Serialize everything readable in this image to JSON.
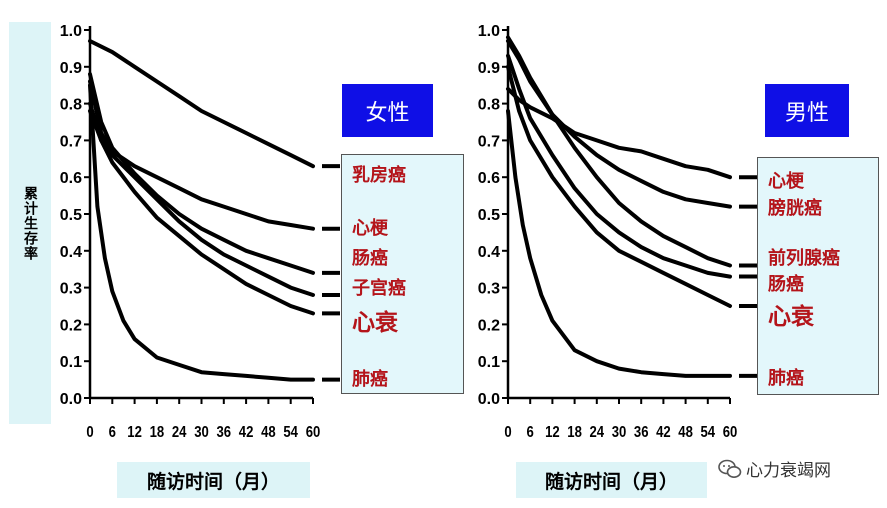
{
  "y_axis_title": "累计生存率",
  "watermark": "心力衰竭网",
  "chart_data": [
    {
      "type": "line",
      "title": "女性",
      "xlabel": "随访时间（月）",
      "ylabel": "累计生存率",
      "xlim": [
        0,
        60
      ],
      "ylim": [
        0,
        1.0
      ],
      "xticks": [
        0,
        6,
        12,
        18,
        24,
        30,
        36,
        42,
        48,
        54,
        60
      ],
      "yticks": [
        0.0,
        0.1,
        0.2,
        0.3,
        0.4,
        0.5,
        0.6,
        0.7,
        0.8,
        0.9,
        1.0
      ],
      "series": [
        {
          "name": "乳房癌",
          "x": [
            0,
            6,
            12,
            18,
            24,
            30,
            36,
            42,
            48,
            54,
            60
          ],
          "values": [
            0.97,
            0.94,
            0.9,
            0.86,
            0.82,
            0.78,
            0.75,
            0.72,
            0.69,
            0.66,
            0.63
          ]
        },
        {
          "name": "心梗",
          "x": [
            0,
            3,
            6,
            12,
            18,
            24,
            30,
            36,
            42,
            48,
            54,
            60
          ],
          "values": [
            0.86,
            0.72,
            0.67,
            0.63,
            0.6,
            0.57,
            0.54,
            0.52,
            0.5,
            0.48,
            0.47,
            0.46
          ]
        },
        {
          "name": "肠癌",
          "x": [
            0,
            3,
            6,
            12,
            18,
            24,
            30,
            36,
            42,
            48,
            54,
            60
          ],
          "values": [
            0.88,
            0.75,
            0.68,
            0.61,
            0.55,
            0.5,
            0.46,
            0.43,
            0.4,
            0.38,
            0.36,
            0.34
          ]
        },
        {
          "name": "子宫癌",
          "x": [
            0,
            3,
            6,
            12,
            18,
            24,
            30,
            36,
            42,
            48,
            54,
            60
          ],
          "values": [
            0.78,
            0.7,
            0.66,
            0.6,
            0.54,
            0.48,
            0.43,
            0.39,
            0.36,
            0.33,
            0.3,
            0.28
          ]
        },
        {
          "name": "心衰",
          "x": [
            0,
            3,
            6,
            12,
            18,
            24,
            30,
            36,
            42,
            48,
            54,
            60
          ],
          "values": [
            0.8,
            0.7,
            0.64,
            0.56,
            0.49,
            0.44,
            0.39,
            0.35,
            0.31,
            0.28,
            0.25,
            0.23
          ]
        },
        {
          "name": "肺癌",
          "x": [
            0,
            2,
            4,
            6,
            9,
            12,
            18,
            24,
            30,
            36,
            42,
            48,
            54,
            60
          ],
          "values": [
            0.85,
            0.52,
            0.38,
            0.29,
            0.21,
            0.16,
            0.11,
            0.09,
            0.07,
            0.065,
            0.06,
            0.055,
            0.05,
            0.05
          ]
        }
      ]
    },
    {
      "type": "line",
      "title": "男性",
      "xlabel": "随访时间（月）",
      "ylabel": "累计生存率",
      "xlim": [
        0,
        60
      ],
      "ylim": [
        0,
        1.0
      ],
      "xticks": [
        0,
        6,
        12,
        18,
        24,
        30,
        36,
        42,
        48,
        54,
        60
      ],
      "yticks": [
        0.0,
        0.1,
        0.2,
        0.3,
        0.4,
        0.5,
        0.6,
        0.7,
        0.8,
        0.9,
        1.0
      ],
      "series": [
        {
          "name": "心梗",
          "x": [
            0,
            3,
            6,
            12,
            18,
            24,
            30,
            36,
            42,
            48,
            54,
            60
          ],
          "values": [
            0.84,
            0.81,
            0.79,
            0.76,
            0.72,
            0.7,
            0.68,
            0.67,
            0.65,
            0.63,
            0.62,
            0.6
          ]
        },
        {
          "name": "膀胱癌",
          "x": [
            0,
            3,
            6,
            12,
            18,
            24,
            30,
            36,
            42,
            48,
            54,
            60
          ],
          "values": [
            0.97,
            0.92,
            0.86,
            0.77,
            0.71,
            0.66,
            0.62,
            0.59,
            0.56,
            0.54,
            0.53,
            0.52
          ]
        },
        {
          "name": "前列腺癌",
          "x": [
            0,
            3,
            6,
            12,
            18,
            24,
            30,
            36,
            42,
            48,
            54,
            60
          ],
          "values": [
            0.98,
            0.93,
            0.87,
            0.77,
            0.68,
            0.6,
            0.53,
            0.48,
            0.44,
            0.41,
            0.38,
            0.36
          ]
        },
        {
          "name": "肠癌",
          "x": [
            0,
            3,
            6,
            12,
            18,
            24,
            30,
            36,
            42,
            48,
            54,
            60
          ],
          "values": [
            0.93,
            0.84,
            0.76,
            0.66,
            0.57,
            0.5,
            0.45,
            0.41,
            0.38,
            0.36,
            0.34,
            0.33
          ]
        },
        {
          "name": "心衰",
          "x": [
            0,
            3,
            6,
            12,
            18,
            24,
            30,
            36,
            42,
            48,
            54,
            60
          ],
          "values": [
            0.9,
            0.78,
            0.7,
            0.6,
            0.52,
            0.45,
            0.4,
            0.37,
            0.34,
            0.31,
            0.28,
            0.25
          ]
        },
        {
          "name": "肺癌",
          "x": [
            0,
            2,
            4,
            6,
            9,
            12,
            18,
            24,
            30,
            36,
            42,
            48,
            54,
            60
          ],
          "values": [
            0.78,
            0.6,
            0.47,
            0.38,
            0.28,
            0.21,
            0.13,
            0.1,
            0.08,
            0.07,
            0.065,
            0.06,
            0.06,
            0.06
          ]
        }
      ]
    }
  ]
}
